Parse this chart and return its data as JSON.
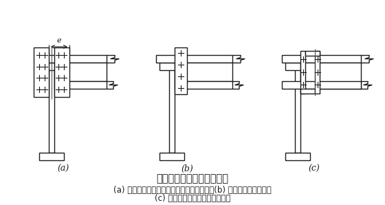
{
  "bg_color": "#ffffff",
  "line_color": "#1a1a1a",
  "lw": 1.0,
  "title": "次梁与主梁的螺栓简支连接",
  "title_fontsize": 10.5,
  "caption_a": "(a) 用拼接板分别连于次梁及主梁加劲肋上；(b) 次梁腹板连于主梁；",
  "caption_b": "(c) 用角钢分别连于主、次梁腹板",
  "caption_fontsize": 8.5,
  "label_a": "(a)",
  "label_b": "(b)",
  "label_c": "(c)"
}
